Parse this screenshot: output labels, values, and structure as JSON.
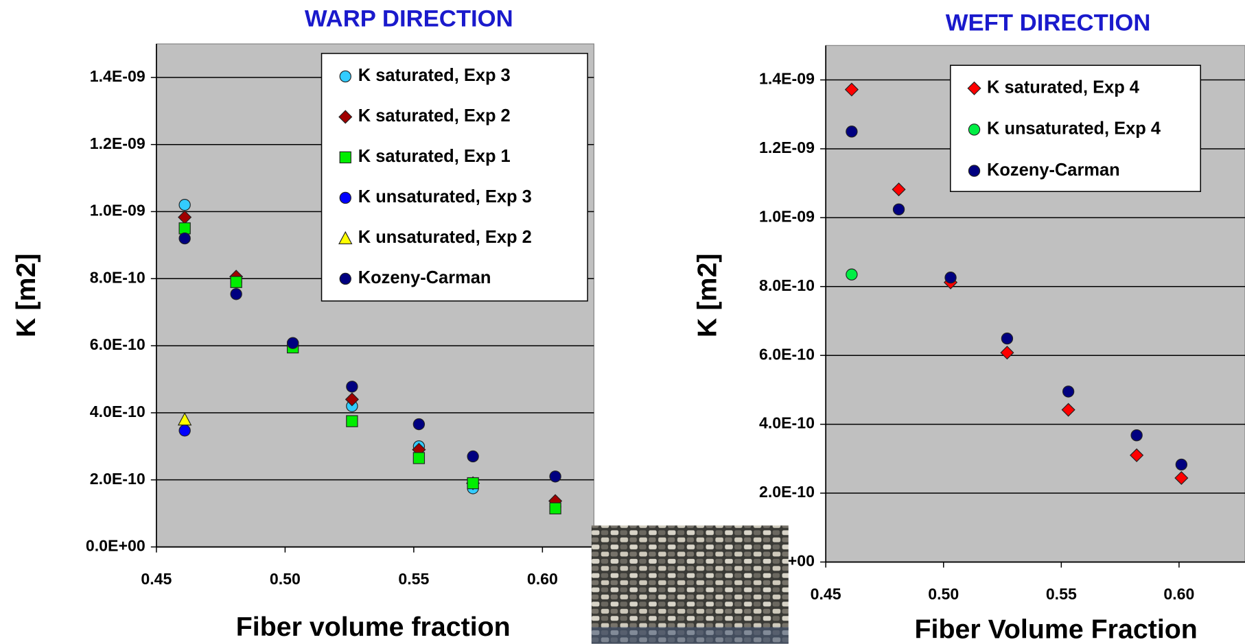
{
  "chart_data": [
    {
      "type": "scatter",
      "title": "WARP DIRECTION",
      "xlabel": "Fiber volume fraction",
      "ylabel": "K [m2]",
      "x": [
        0.461,
        0.481,
        0.503,
        0.526,
        0.552,
        0.573,
        0.605
      ],
      "xlim": [
        0.45,
        0.62
      ],
      "xticks": [
        0.45,
        {
          "value": 0.5,
          "label": "0.50"
        },
        0.55,
        {
          "value": 0.6,
          "label": "0.60"
        }
      ],
      "ylim": [
        0,
        1.5e-09
      ],
      "yticks": [
        {
          "value": 0,
          "label": "0.0E+00"
        },
        {
          "value": 2e-10,
          "label": "2.0E-10"
        },
        {
          "value": 4e-10,
          "label": "4.0E-10"
        },
        {
          "value": 6e-10,
          "label": "6.0E-10"
        },
        {
          "value": 8e-10,
          "label": "8.0E-10"
        },
        {
          "value": 1e-09,
          "label": "1.0E-09"
        },
        {
          "value": 1.2e-09,
          "label": "1.2E-09"
        },
        {
          "value": 1.4e-09,
          "label": "1.4E-09"
        }
      ],
      "grid": true,
      "legend": "upper right",
      "series": [
        {
          "name": "K saturated, Exp 3",
          "color": "#33ccff",
          "marker": "circle",
          "values": [
            1.02e-09,
            7.9e-10,
            6e-10,
            4.2e-10,
            3e-10,
            1.75e-10,
            1.2e-10
          ]
        },
        {
          "name": "K saturated, Exp 2",
          "color": "#a00000",
          "marker": "diamond",
          "values": [
            9.83e-10,
            8.06e-10,
            6e-10,
            4.4e-10,
            2.9e-10,
            1.9e-10,
            1.37e-10
          ]
        },
        {
          "name": "K saturated, Exp 1",
          "color": "#00ee00",
          "marker": "square",
          "values": [
            9.5e-10,
            7.9e-10,
            5.95e-10,
            3.75e-10,
            2.65e-10,
            1.9e-10,
            1.15e-10
          ]
        },
        {
          "name": "K unsaturated, Exp 3",
          "color": "#0000ff",
          "marker": "circle",
          "values": [
            3.47e-10,
            null,
            null,
            null,
            null,
            null,
            null
          ]
        },
        {
          "name": "K unsaturated, Exp 2",
          "color": "#ffff00",
          "marker": "triangle",
          "values": [
            3.8e-10,
            null,
            null,
            null,
            null,
            null,
            null
          ]
        },
        {
          "name": "Kozeny-Carman",
          "color": "#000080",
          "marker": "circle",
          "values": [
            9.2e-10,
            7.54e-10,
            6.08e-10,
            4.78e-10,
            3.66e-10,
            2.7e-10,
            2.1e-10
          ]
        }
      ]
    },
    {
      "type": "scatter",
      "title": "WEFT DIRECTION",
      "xlabel": "Fiber Volume Fraction",
      "ylabel": "K [m2]",
      "x": [
        0.461,
        0.481,
        0.503,
        0.527,
        0.553,
        0.582,
        0.601
      ],
      "xlim": [
        0.45,
        0.628
      ],
      "xticks": [
        0.45,
        {
          "value": 0.5,
          "label": "0.50"
        },
        0.55,
        {
          "value": 0.6,
          "label": "0.60"
        }
      ],
      "ylim": [
        0,
        1.5e-09
      ],
      "yticks": [
        {
          "value": 0,
          "label": "0.0E+00"
        },
        {
          "value": 2e-10,
          "label": "2.0E-10"
        },
        {
          "value": 4e-10,
          "label": "4.0E-10"
        },
        {
          "value": 6e-10,
          "label": "6.0E-10"
        },
        {
          "value": 8e-10,
          "label": "8.0E-10"
        },
        {
          "value": 1e-09,
          "label": "1.0E-09"
        },
        {
          "value": 1.2e-09,
          "label": "1.2E-09"
        },
        {
          "value": 1.4e-09,
          "label": "1.4E-09"
        }
      ],
      "grid": true,
      "legend": "upper right",
      "series": [
        {
          "name": "K saturated, Exp 4",
          "color": "#ff0000",
          "marker": "diamond",
          "values": [
            1.372e-09,
            1.082e-09,
            8.12e-10,
            6.08e-10,
            4.42e-10,
            3.1e-10,
            2.44e-10
          ]
        },
        {
          "name": "K unsaturated, Exp 4",
          "color": "#00ee44",
          "marker": "circle",
          "values": [
            8.35e-10,
            null,
            null,
            null,
            null,
            null,
            null
          ]
        },
        {
          "name": "Kozeny-Carman",
          "color": "#000080",
          "marker": "circle",
          "values": [
            1.25e-09,
            1.024e-09,
            8.26e-10,
            6.49e-10,
            4.95e-10,
            3.68e-10,
            2.83e-10
          ]
        }
      ]
    }
  ]
}
